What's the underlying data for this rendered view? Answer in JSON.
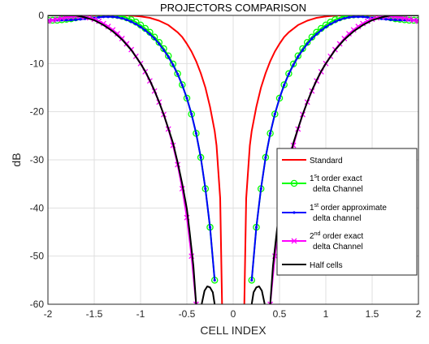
{
  "chart_data": {
    "type": "line",
    "title": "PROJECTORS COMPARISON",
    "xlabel": "CELL INDEX",
    "ylabel": "dB",
    "xlim": [
      -2,
      2
    ],
    "ylim": [
      -60,
      0
    ],
    "xticks": [
      -2,
      -1.5,
      -1,
      -0.5,
      0,
      0.5,
      1,
      1.5,
      2
    ],
    "xtick_labels": [
      "-2",
      "-1.5",
      "-1",
      "-0.5",
      "0",
      "0.5",
      "1",
      "1.5",
      "2"
    ],
    "yticks": [
      0,
      -10,
      -20,
      -30,
      -40,
      -50,
      -60
    ],
    "ytick_labels": [
      "0",
      "-10",
      "-20",
      "-30",
      "-40",
      "-50",
      "-60"
    ],
    "grid": true,
    "legend_position": "bottom-right",
    "series": [
      {
        "name": "Standard",
        "color": "#ff0000",
        "marker": "none",
        "x": [
          0.12,
          0.14,
          0.18,
          0.2,
          0.25,
          0.3,
          0.35,
          0.4,
          0.45,
          0.5,
          0.55,
          0.6,
          0.7,
          0.8,
          0.9,
          1.0,
          1.1,
          1.2,
          1.3,
          2.0
        ],
        "y": [
          -60,
          -38,
          -27,
          -24,
          -19,
          -15,
          -12,
          -9.5,
          -7.5,
          -5.9,
          -4.5,
          -3.5,
          -2,
          -1.1,
          -0.5,
          -0.2,
          -0.05,
          0,
          0,
          0
        ]
      },
      {
        "name": "1st order exact delta Channel",
        "legend_parts": [
          {
            "text": "1",
            "sup": false
          },
          {
            "text": "s",
            "sup": true
          },
          {
            "text": "t order exact",
            "sup": false
          }
        ],
        "legend_line2": "delta Channel",
        "color": "#00ff00",
        "marker": "circle",
        "x": [
          0.2,
          0.25,
          0.3,
          0.35,
          0.4,
          0.45,
          0.5,
          0.55,
          0.6,
          0.65,
          0.7,
          0.75,
          0.8,
          0.85,
          0.9,
          0.95,
          1.0,
          1.05,
          1.1,
          1.15,
          1.2,
          1.25,
          1.3,
          1.35,
          1.4,
          1.45,
          1.5,
          1.55,
          1.6,
          1.65,
          1.7,
          1.75,
          1.8,
          1.85,
          1.9,
          1.95,
          2.0
        ],
        "y": [
          -55,
          -44,
          -36,
          -29.5,
          -24.5,
          -20.5,
          -17.2,
          -14.4,
          -12.1,
          -10.1,
          -8.4,
          -6.9,
          -5.6,
          -4.5,
          -3.5,
          -2.7,
          -2,
          -1.4,
          -0.9,
          -0.5,
          -0.2,
          0,
          0.1,
          0.2,
          0.3,
          0.3,
          0.2,
          0.1,
          -0.1,
          -0.3,
          -0.5,
          -0.7,
          -0.8,
          -0.9,
          -1,
          -1,
          -1
        ]
      },
      {
        "name": "1st order approximate delta channel",
        "legend_parts": [
          {
            "text": "1",
            "sup": false
          },
          {
            "text": "st",
            "sup": true
          },
          {
            "text": " order approximate",
            "sup": false
          }
        ],
        "legend_line2": "delta channel",
        "color": "#0000ff",
        "marker": "dot",
        "x": [
          0.2,
          0.25,
          0.3,
          0.35,
          0.4,
          0.45,
          0.5,
          0.55,
          0.6,
          0.65,
          0.7,
          0.75,
          0.8,
          0.85,
          0.9,
          0.95,
          1.0,
          1.05,
          1.1,
          1.15,
          1.2,
          1.25,
          1.3,
          1.35,
          1.4,
          1.45,
          1.5,
          1.55,
          1.6,
          1.65,
          1.7,
          1.75,
          1.8,
          1.85,
          1.9,
          1.95,
          2.0
        ],
        "y": [
          -55,
          -44,
          -36,
          -29.5,
          -24.5,
          -20.5,
          -17.2,
          -14.5,
          -12.2,
          -10.3,
          -8.6,
          -7.2,
          -5.9,
          -4.8,
          -3.9,
          -3.1,
          -2.4,
          -1.8,
          -1.3,
          -0.9,
          -0.6,
          -0.4,
          -0.3,
          -0.3,
          -0.3,
          -0.4,
          -0.5,
          -0.6,
          -0.7,
          -0.8,
          -0.9,
          -0.95,
          -1,
          -1,
          -1,
          -1,
          -1
        ]
      },
      {
        "name": "2nd order exact delta Channel",
        "legend_parts": [
          {
            "text": "2",
            "sup": false
          },
          {
            "text": "nd",
            "sup": true
          },
          {
            "text": " order exact",
            "sup": false
          }
        ],
        "legend_line2": "delta Channel",
        "color": "#ff00ff",
        "marker": "cross",
        "x": [
          0.4,
          0.45,
          0.5,
          0.55,
          0.6,
          0.65,
          0.7,
          0.75,
          0.8,
          0.85,
          0.9,
          0.95,
          1.0,
          1.05,
          1.1,
          1.15,
          1.2,
          1.25,
          1.3,
          1.35,
          1.4,
          1.45,
          1.5,
          1.55,
          1.6,
          1.65,
          1.7,
          1.75,
          1.8,
          1.85,
          1.9,
          1.95,
          2.0
        ],
        "y": [
          -60,
          -50,
          -42,
          -36,
          -31,
          -27,
          -23.6,
          -20.6,
          -18,
          -15.7,
          -13.6,
          -11.7,
          -10,
          -8.5,
          -7.1,
          -5.9,
          -4.8,
          -3.8,
          -3,
          -2.3,
          -1.7,
          -1.2,
          -0.8,
          -0.5,
          -0.3,
          -0.2,
          -0.2,
          -0.3,
          -0.4,
          -0.6,
          -0.8,
          -1,
          -1.2
        ]
      },
      {
        "name": "Half cells",
        "color": "#000000",
        "marker": "none",
        "x": [
          0.2,
          0.22,
          0.25,
          0.28,
          0.31,
          0.34,
          0.37,
          0.4,
          0.43,
          0.47,
          0.5,
          0.55,
          0.6,
          0.65,
          0.7,
          0.75,
          0.8,
          0.85,
          0.9,
          0.95,
          1.0,
          1.1,
          1.2,
          1.3,
          1.4,
          1.5,
          1.6,
          1.7,
          1.8,
          1.9,
          2.0
        ],
        "y": [
          -60,
          -57.5,
          -56.5,
          -56.3,
          -57.2,
          -60,
          null,
          -60,
          -52,
          -45,
          -40.2,
          -35,
          -30.5,
          -26.5,
          -23.5,
          -20.6,
          -18,
          -15.6,
          -13.5,
          -11.6,
          -10,
          -7.2,
          -5,
          -3.3,
          -2,
          -1,
          -0.4,
          0,
          0,
          0,
          0
        ]
      }
    ]
  }
}
